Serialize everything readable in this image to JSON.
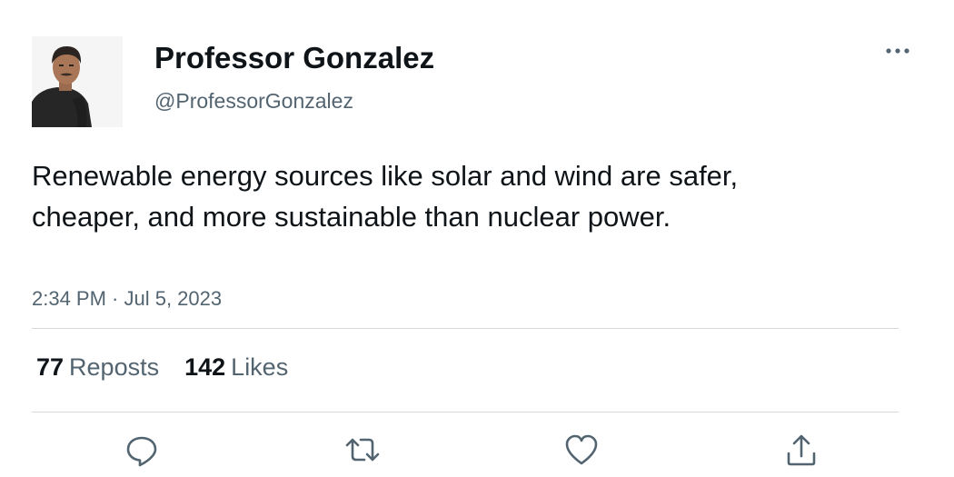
{
  "author": {
    "display_name": "Professor Gonzalez",
    "handle": "@ProfessorGonzalez",
    "avatar": "profile-photo"
  },
  "menu_icon": "more-horizontal-icon",
  "tweet": {
    "text": "Renewable energy sources like solar and wind are safer, cheaper, and more sustainable than nuclear power.",
    "timestamp": "2:34 PM · Jul 5, 2023"
  },
  "stats": {
    "reposts_count": "77",
    "reposts_label": "Reposts",
    "likes_count": "142",
    "likes_label": "Likes"
  },
  "actions": [
    "reply-icon",
    "repost-icon",
    "like-icon",
    "share-icon"
  ],
  "colors": {
    "text_primary": "#0f1419",
    "text_secondary": "#536471",
    "divider": "#d6d9db",
    "icon": "#536471"
  }
}
